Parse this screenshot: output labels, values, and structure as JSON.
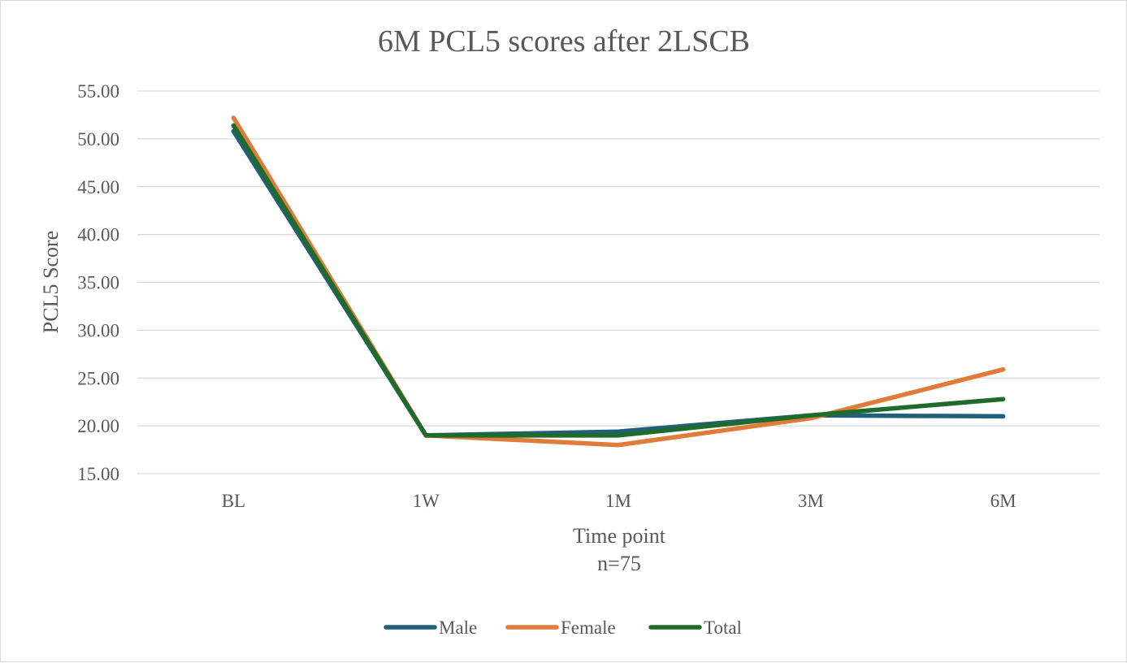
{
  "chart_data": {
    "type": "line",
    "title": "6M PCL5 scores after 2LSCB",
    "xlabel": "Time point",
    "xlabel_sub": "n=75",
    "ylabel": "PCL5 Score",
    "categories": [
      "BL",
      "1W",
      "1M",
      "3M",
      "6M"
    ],
    "ylim": [
      15,
      55
    ],
    "yticks": [
      "15.00",
      "20.00",
      "25.00",
      "30.00",
      "35.00",
      "40.00",
      "45.00",
      "50.00",
      "55.00"
    ],
    "grid": true,
    "legend_position": "bottom",
    "series": [
      {
        "name": "Male",
        "color": "#215f7a",
        "values": [
          50.8,
          19.0,
          19.4,
          21.1,
          21.0
        ]
      },
      {
        "name": "Female",
        "color": "#e07b39",
        "values": [
          52.2,
          19.0,
          18.0,
          20.8,
          25.9
        ]
      },
      {
        "name": "Total",
        "color": "#1e6b2c",
        "values": [
          51.4,
          19.0,
          19.0,
          21.1,
          22.8
        ]
      }
    ]
  }
}
